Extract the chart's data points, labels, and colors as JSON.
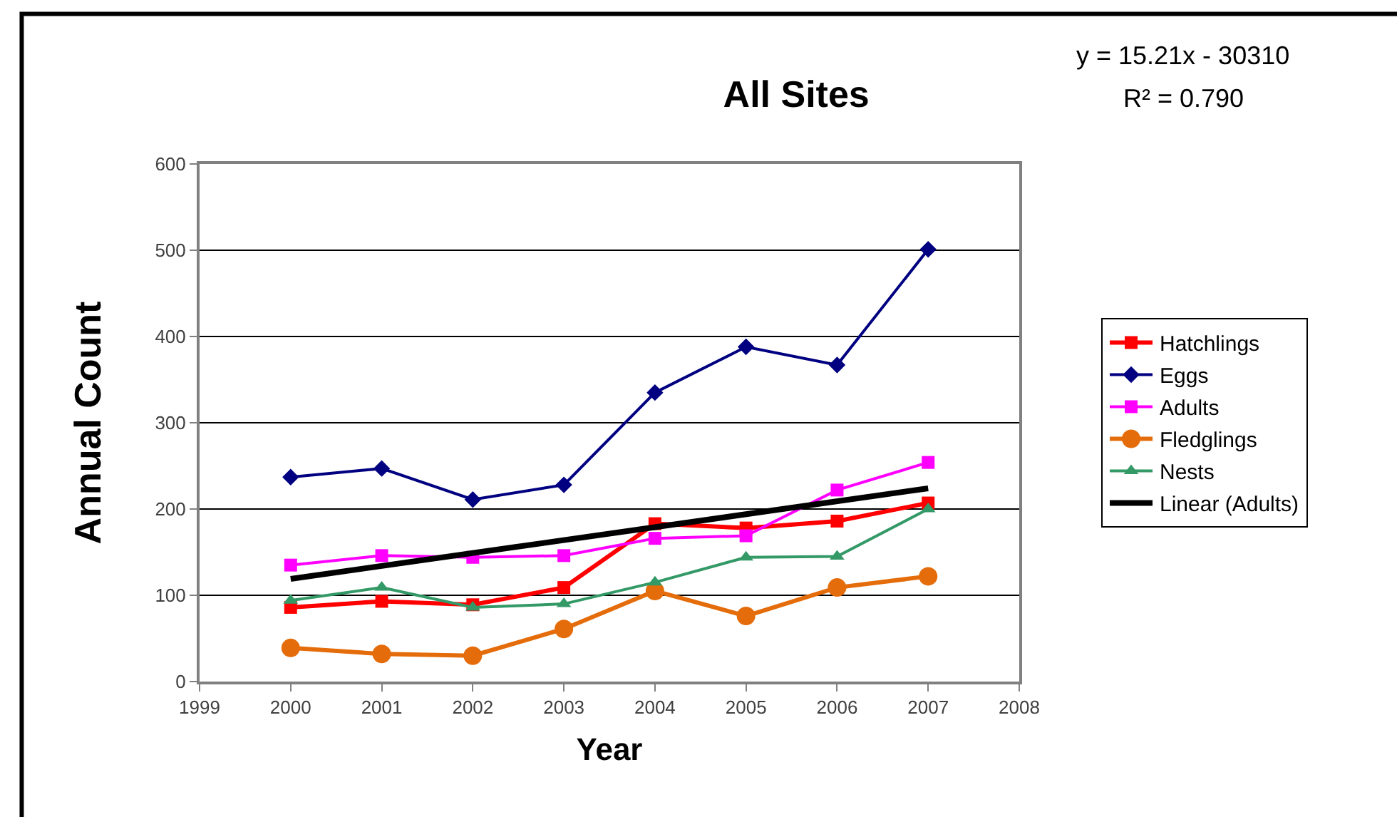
{
  "chart_data": {
    "type": "line",
    "title": "All Sites",
    "xlabel": "Year",
    "ylabel": "Annual Count",
    "x": [
      2000,
      2001,
      2002,
      2003,
      2004,
      2005,
      2006,
      2007
    ],
    "series": [
      {
        "name": "Hatchlings",
        "color": "#ff0000",
        "marker": "square",
        "values": [
          86,
          93,
          89,
          109,
          183,
          178,
          186,
          207
        ]
      },
      {
        "name": "Eggs",
        "color": "#000080",
        "marker": "diamond",
        "values": [
          237,
          247,
          211,
          228,
          335,
          388,
          367,
          501
        ]
      },
      {
        "name": "Adults",
        "color": "#ff00ff",
        "marker": "square",
        "values": [
          135,
          146,
          144,
          146,
          166,
          169,
          222,
          254
        ]
      },
      {
        "name": "Fledglings",
        "color": "#e46c0a",
        "marker": "circle",
        "values": [
          39,
          32,
          30,
          61,
          105,
          76,
          109,
          122
        ]
      },
      {
        "name": "Nests",
        "color": "#339966",
        "marker": "triangle",
        "values": [
          94,
          109,
          86,
          90,
          115,
          144,
          145,
          200
        ]
      },
      {
        "name": "Linear (Adults)",
        "color": "#000000",
        "marker": "none",
        "x": [
          2000,
          2007
        ],
        "values": [
          119,
          224
        ]
      }
    ],
    "xlim": [
      1999,
      2008
    ],
    "xticks": [
      1999,
      2000,
      2001,
      2002,
      2003,
      2004,
      2005,
      2006,
      2007,
      2008
    ],
    "ylim": [
      0,
      600
    ],
    "yticks": [
      0,
      100,
      200,
      300,
      400,
      500,
      600
    ],
    "grid": "y",
    "legend": "right",
    "annotations": [
      "y = 15.21x - 30310",
      "R² = 0.790"
    ]
  }
}
